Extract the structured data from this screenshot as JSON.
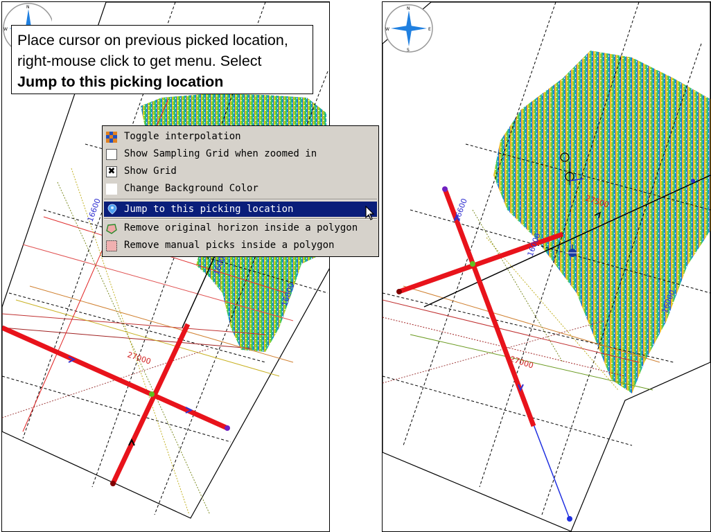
{
  "callout": {
    "line1": "Place cursor on previous picked location,",
    "line2": "right-mouse click to get menu. Select",
    "line3": "Jump to this picking location"
  },
  "context_menu": {
    "items": [
      {
        "label": "Toggle interpolation",
        "icon": "interpolation-icon"
      },
      {
        "label": "Show Sampling Grid when zoomed in",
        "icon": "checkbox-unchecked-icon",
        "checked": false
      },
      {
        "label": "Show Grid",
        "icon": "checkbox-checked-icon",
        "checked": true
      },
      {
        "label": "Change Background Color",
        "icon": "color-swatch-icon"
      },
      {
        "label": "Jump to this picking location",
        "icon": "jump-location-icon",
        "highlighted": true
      },
      {
        "label": "Remove original horizon inside a polygon",
        "icon": "polygon-remove-horizon-icon"
      },
      {
        "label": "Remove manual picks inside a polygon",
        "icon": "polygon-remove-picks-icon"
      }
    ]
  },
  "compass": {
    "n": "N",
    "s": "S",
    "e": "E",
    "w": "W"
  },
  "left_map": {
    "labels": {
      "inline_top": "16600",
      "inline_mid": "16000",
      "crossline": "27000",
      "inline_right": "16000"
    }
  },
  "right_map": {
    "labels": {
      "inline_top": "16600",
      "inline_mid": "16000",
      "inline_right": "16000",
      "crossline": "27000",
      "crossline_top": "27500"
    }
  },
  "colors": {
    "menu_bg": "#d6d2cb",
    "menu_highlight": "#0a1e7a",
    "pick_line": "#e8131b",
    "grid_dash": "#000000",
    "label_blue": "#3030d0",
    "label_red": "#d02020"
  }
}
